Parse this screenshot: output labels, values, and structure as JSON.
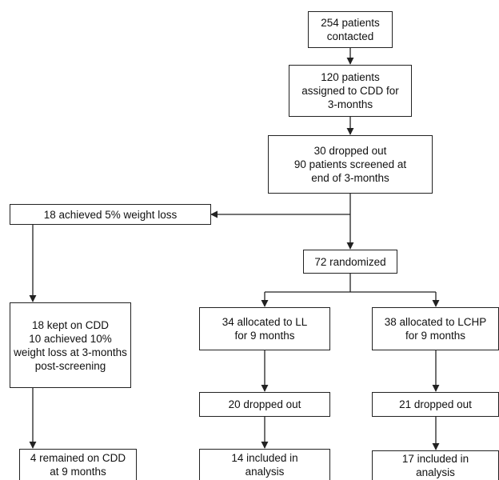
{
  "flowchart": {
    "boxes": {
      "contacted": "254 patients\ncontacted",
      "assigned_cdd": "120 patients\nassigned to CDD for\n3-months",
      "screened": "30 dropped out\n90 patients screened at\nend of 3-months",
      "achieved_5pct": "18 achieved 5% weight loss",
      "randomized": "72 randomized",
      "kept_cdd": "18 kept on CDD\n10 achieved 10%\nweight loss at 3-months\npost-screening",
      "allocated_ll": "34 allocated to LL\nfor 9 months",
      "allocated_lchp": "38 allocated to LCHP\nfor 9 months",
      "dropped_ll": "20 dropped out",
      "dropped_lchp": "21 dropped out",
      "remained_cdd": "4 remained on CDD\nat 9 months",
      "included_ll": "14 included in\nanalysis",
      "included_lchp": "17 included in\nanalysis"
    }
  }
}
